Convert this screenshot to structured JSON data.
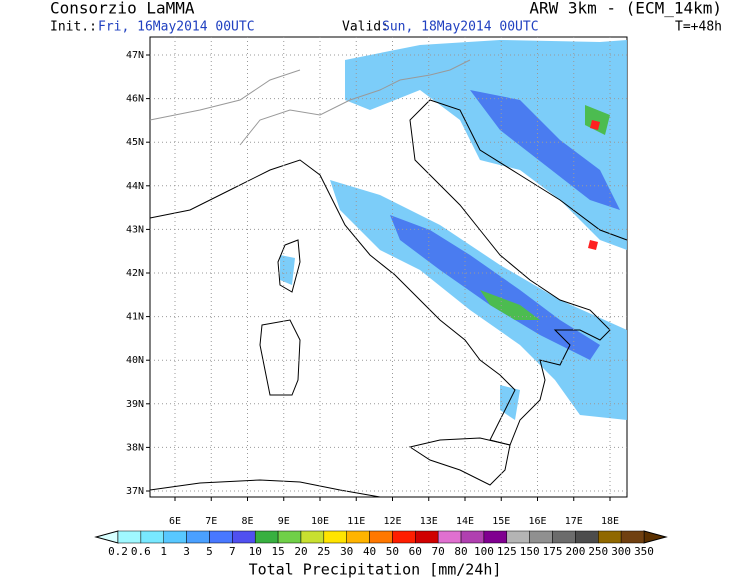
{
  "header": {
    "left_title": "Consorzio LaMMA",
    "right_title": "ARW 3km - (ECM_14km)",
    "init_label": "Init.:",
    "init_time": "Fri, 16May2014 00UTC",
    "valid_label": "Valid:",
    "valid_time": "Sun, 18May2014 00UTC",
    "lead_time": "T=+48h"
  },
  "map": {
    "lat_labels": [
      "47N",
      "46N",
      "45N",
      "44N",
      "43N",
      "42N",
      "41N",
      "40N",
      "39N",
      "38N",
      "37N"
    ],
    "lon_labels": [
      "6E",
      "7E",
      "8E",
      "9E",
      "10E",
      "11E",
      "12E",
      "13E",
      "14E",
      "15E",
      "16E",
      "17E",
      "18E"
    ]
  },
  "colorbar": {
    "title": "Total Precipitation [mm/24h]",
    "levels": [
      "0.2",
      "0.6",
      "1",
      "3",
      "5",
      "7",
      "10",
      "15",
      "20",
      "25",
      "30",
      "40",
      "50",
      "60",
      "70",
      "80",
      "100",
      "125",
      "150",
      "175",
      "200",
      "250",
      "300",
      "350"
    ],
    "colors": [
      "#a0f8ff",
      "#78e8ff",
      "#58c8ff",
      "#4aa0ff",
      "#4878ff",
      "#5050f0",
      "#38b040",
      "#70d048",
      "#c8e030",
      "#ffe400",
      "#ffb400",
      "#ff7800",
      "#ff1e00",
      "#d00000",
      "#e070d0",
      "#b040b0",
      "#800090",
      "#b4b4b4",
      "#909090",
      "#6c6c6c",
      "#4c4c4c",
      "#906800",
      "#704010"
    ],
    "under_color": "#d8ffff",
    "over_color": "#5a3000"
  }
}
